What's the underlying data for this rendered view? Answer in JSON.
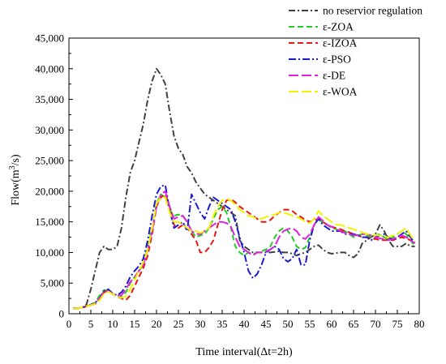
{
  "chart_data": {
    "type": "line",
    "xlabel": "Time interval(Δt=2h)",
    "ylabel_main": "Flow(m",
    "ylabel_sup": "3",
    "ylabel_tail": "/s)",
    "xlim": [
      0,
      80
    ],
    "ylim": [
      0,
      45000
    ],
    "x_ticks": [
      0,
      5,
      10,
      15,
      20,
      25,
      30,
      35,
      40,
      45,
      50,
      55,
      60,
      65,
      70,
      75,
      80
    ],
    "y_ticks": [
      0,
      5000,
      10000,
      15000,
      20000,
      25000,
      30000,
      35000,
      40000,
      45000
    ],
    "x_tick_labels": [
      "0",
      "5",
      "10",
      "15",
      "20",
      "25",
      "30",
      "35",
      "40",
      "45",
      "50",
      "55",
      "60",
      "65",
      "70",
      "75",
      "80"
    ],
    "y_tick_labels": [
      "0",
      "5,000",
      "10,000",
      "15,000",
      "20,000",
      "25,000",
      "30,000",
      "35,000",
      "40,000",
      "45,000"
    ],
    "grid": false,
    "legend_position": "top-right",
    "x": [
      1,
      2,
      3,
      4,
      5,
      6,
      7,
      8,
      9,
      10,
      11,
      12,
      13,
      14,
      15,
      16,
      17,
      18,
      19,
      20,
      21,
      22,
      23,
      24,
      25,
      26,
      27,
      28,
      29,
      30,
      31,
      32,
      33,
      34,
      35,
      36,
      37,
      38,
      39,
      40,
      41,
      42,
      43,
      44,
      45,
      46,
      47,
      48,
      49,
      50,
      51,
      52,
      53,
      54,
      55,
      56,
      57,
      58,
      59,
      60,
      61,
      62,
      63,
      64,
      65,
      66,
      67,
      68,
      69,
      70,
      71,
      72,
      73,
      74,
      75,
      76,
      77,
      78,
      79
    ],
    "series": [
      {
        "name": "no reservior regulation",
        "color": "#404040",
        "dash": "8,3,2,3",
        "values": [
          900,
          900,
          1000,
          1500,
          4000,
          7000,
          10000,
          11000,
          10500,
          10500,
          11000,
          14000,
          19000,
          23000,
          25000,
          28000,
          31000,
          35000,
          38000,
          40000,
          39000,
          37500,
          33000,
          29000,
          27000,
          26000,
          24000,
          23000,
          21500,
          20500,
          19500,
          19000,
          18500,
          18000,
          17500,
          17000,
          16500,
          16000,
          12000,
          11000,
          10500,
          10000,
          10000,
          10000,
          10000,
          10000,
          10100,
          10200,
          10000,
          10000,
          9800,
          9500,
          9800,
          10000,
          10500,
          11000,
          11200,
          10500,
          10000,
          9800,
          9900,
          10000,
          10000,
          9500,
          9200,
          9800,
          11500,
          12000,
          12500,
          13000,
          14500,
          13500,
          12000,
          11000,
          11000,
          11000,
          11500,
          11000,
          11000
        ]
      },
      {
        "name": "ε-ZOA",
        "color": "#22cc22",
        "dash": "7,4",
        "values": [
          900,
          900,
          1000,
          1200,
          1500,
          1800,
          3000,
          3800,
          3900,
          3200,
          3000,
          2700,
          3500,
          5000,
          6000,
          7000,
          8000,
          11000,
          14000,
          18000,
          19500,
          19000,
          17000,
          16000,
          16200,
          16000,
          15000,
          13500,
          12500,
          12800,
          13000,
          14000,
          15500,
          17000,
          17500,
          16500,
          14000,
          11000,
          10000,
          9500,
          10000,
          9700,
          10000,
          10200,
          10500,
          11000,
          12500,
          13500,
          14000,
          13500,
          12500,
          11000,
          10500,
          10800,
          12500,
          14500,
          15500,
          14800,
          14500,
          14000,
          13800,
          13500,
          13500,
          13000,
          12500,
          12800,
          13000,
          12800,
          12500,
          12800,
          13000,
          12500,
          12000,
          12500,
          13000,
          13500,
          13000,
          12000,
          11000
        ]
      },
      {
        "name": "ε-IZOA",
        "color": "#e81515",
        "dash": "7,4",
        "values": [
          900,
          900,
          1000,
          1200,
          1400,
          1600,
          2500,
          3500,
          3800,
          3200,
          2800,
          2500,
          2200,
          3000,
          4500,
          6000,
          7500,
          9500,
          13000,
          17500,
          19000,
          19500,
          17500,
          14500,
          14000,
          14500,
          14000,
          13000,
          12000,
          10000,
          10000,
          10800,
          12000,
          14500,
          17000,
          18500,
          18700,
          18200,
          17500,
          17000,
          16500,
          16000,
          15500,
          15000,
          15000,
          15300,
          16000,
          16500,
          17000,
          17000,
          16800,
          16200,
          15800,
          15300,
          15000,
          15300,
          15500,
          15000,
          14500,
          14200,
          14000,
          13800,
          13500,
          13300,
          13000,
          12800,
          12500,
          12500,
          12300,
          12200,
          12000,
          12000,
          12000,
          12000,
          12300,
          12500,
          12300,
          12000,
          11500
        ]
      },
      {
        "name": "ε-PSO",
        "color": "#1a1ad0",
        "dash": "9,3,2,3",
        "values": [
          900,
          900,
          1000,
          1200,
          1500,
          1800,
          2500,
          3800,
          4000,
          3300,
          3000,
          3500,
          4500,
          6000,
          7000,
          7800,
          9000,
          12000,
          16000,
          19500,
          20800,
          21000,
          17000,
          14000,
          14500,
          15000,
          13500,
          19500,
          18000,
          16500,
          15500,
          17500,
          19000,
          18500,
          18000,
          17500,
          17000,
          15000,
          12500,
          10000,
          7000,
          5800,
          6500,
          8000,
          10000,
          10500,
          11000,
          10500,
          9000,
          8500,
          9000,
          10500,
          8000,
          8000,
          12000,
          14500,
          15500,
          14500,
          14000,
          13500,
          13500,
          13500,
          13000,
          13000,
          13000,
          12800,
          12500,
          12500,
          12000,
          12500,
          12800,
          13000,
          12500,
          12000,
          12500,
          13000,
          13500,
          12500,
          11500
        ]
      },
      {
        "name": "ε-DE",
        "color": "#e020e0",
        "dash": "12,4",
        "values": [
          900,
          900,
          1000,
          1200,
          1400,
          1700,
          2500,
          3500,
          3700,
          3200,
          3000,
          3000,
          4000,
          5200,
          6000,
          7000,
          8000,
          10500,
          13500,
          17500,
          19500,
          20000,
          17500,
          15500,
          15800,
          16000,
          15000,
          13500,
          13000,
          13000,
          13500,
          14000,
          14500,
          15000,
          15000,
          14800,
          14200,
          12500,
          11000,
          10500,
          10000,
          9500,
          10000,
          10000,
          10200,
          10500,
          11000,
          12500,
          13500,
          13800,
          14000,
          13500,
          12500,
          12200,
          13000,
          14500,
          15800,
          15200,
          14500,
          14200,
          13800,
          13500,
          13200,
          13000,
          12800,
          12800,
          13000,
          13000,
          12800,
          12500,
          12300,
          12200,
          12000,
          12200,
          12500,
          12800,
          12500,
          12000,
          11500
        ]
      },
      {
        "name": "ε-WOA",
        "color": "#f2f200",
        "dash": "12,4",
        "values": [
          900,
          900,
          1000,
          1200,
          1400,
          1600,
          2200,
          3200,
          3600,
          3200,
          2800,
          2600,
          2800,
          4000,
          5500,
          7000,
          8500,
          10500,
          14000,
          18000,
          19000,
          19000,
          16500,
          15000,
          15000,
          14500,
          14000,
          13500,
          13500,
          13200,
          13500,
          14000,
          16000,
          17500,
          18500,
          18800,
          18500,
          17800,
          17000,
          16500,
          16000,
          15800,
          15500,
          15500,
          15800,
          16000,
          16200,
          16500,
          16500,
          16300,
          16000,
          15800,
          15500,
          15000,
          14800,
          15500,
          16800,
          16000,
          15500,
          15000,
          14500,
          14500,
          14300,
          14000,
          13800,
          13500,
          13300,
          13000,
          13000,
          12800,
          12800,
          12600,
          12500,
          12800,
          13000,
          13500,
          14000,
          12800,
          11800
        ]
      }
    ]
  }
}
